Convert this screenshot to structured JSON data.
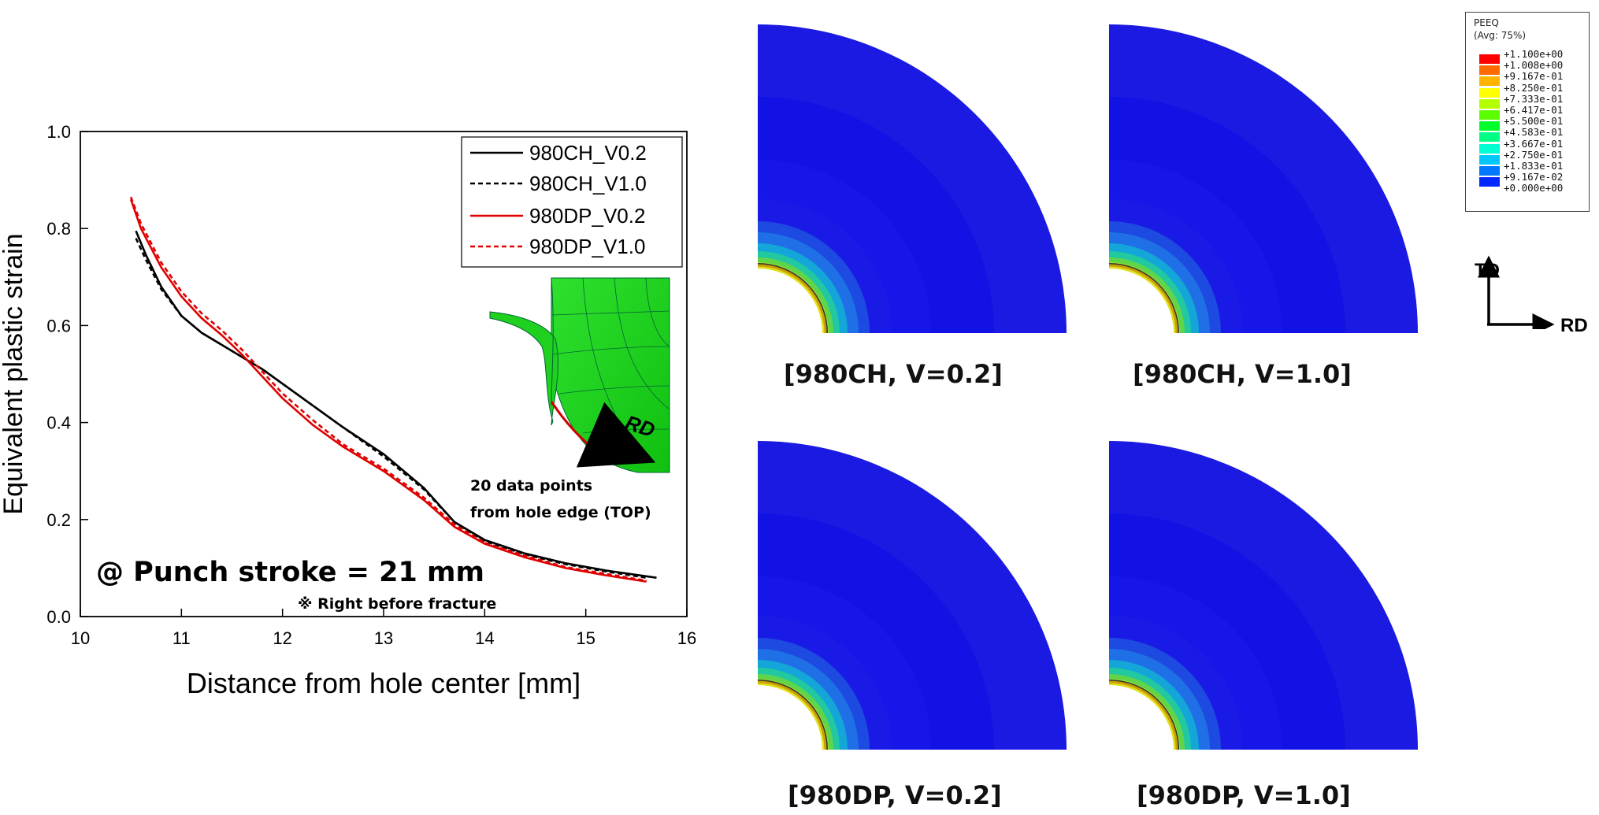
{
  "chart_data": {
    "type": "line",
    "xlabel": "Distance from hole center [mm]",
    "ylabel": "Equivalent plastic strain",
    "xlim": [
      10,
      16
    ],
    "ylim": [
      0.0,
      1.0
    ],
    "xticks": [
      "10",
      "11",
      "12",
      "13",
      "14",
      "15",
      "16"
    ],
    "yticks": [
      "0.0",
      "0.2",
      "0.4",
      "0.6",
      "0.8",
      "1.0"
    ],
    "legend_position": "top-right",
    "series": [
      {
        "name": "980CH_V0.2",
        "color": "#000000",
        "dash": "solid",
        "x": [
          10.55,
          10.65,
          10.8,
          11.0,
          11.2,
          11.4,
          11.6,
          11.8,
          12.0,
          12.3,
          12.6,
          13.0,
          13.4,
          13.7,
          14.0,
          14.4,
          14.8,
          15.2,
          15.7
        ],
        "y": [
          0.795,
          0.745,
          0.68,
          0.62,
          0.585,
          0.56,
          0.535,
          0.51,
          0.48,
          0.435,
          0.39,
          0.335,
          0.265,
          0.195,
          0.158,
          0.13,
          0.11,
          0.095,
          0.08
        ]
      },
      {
        "name": "980CH_V1.0",
        "color": "#000000",
        "dash": "dashed",
        "x": [
          10.55,
          10.65,
          10.8,
          11.0,
          11.2,
          11.4,
          11.6,
          11.8,
          12.0,
          12.3,
          12.6,
          13.0,
          13.4,
          13.7,
          14.0,
          14.4,
          14.8,
          15.2,
          15.6
        ],
        "y": [
          0.78,
          0.735,
          0.675,
          0.62,
          0.585,
          0.56,
          0.535,
          0.51,
          0.48,
          0.435,
          0.39,
          0.33,
          0.262,
          0.195,
          0.155,
          0.128,
          0.108,
          0.093,
          0.08
        ]
      },
      {
        "name": "980DP_V0.2",
        "color": "#e00000",
        "dash": "solid",
        "x": [
          10.5,
          10.6,
          10.8,
          11.0,
          11.2,
          11.4,
          11.6,
          11.8,
          12.0,
          12.3,
          12.6,
          13.0,
          13.4,
          13.7,
          14.0,
          14.4,
          14.8,
          15.2,
          15.6
        ],
        "y": [
          0.86,
          0.8,
          0.72,
          0.66,
          0.615,
          0.58,
          0.54,
          0.495,
          0.45,
          0.395,
          0.35,
          0.3,
          0.24,
          0.185,
          0.15,
          0.122,
          0.1,
          0.085,
          0.072
        ]
      },
      {
        "name": "980DP_V1.0",
        "color": "#e00000",
        "dash": "dashed",
        "x": [
          10.5,
          10.6,
          10.8,
          11.0,
          11.2,
          11.4,
          11.6,
          11.8,
          12.0,
          12.3,
          12.6,
          13.0,
          13.4,
          13.7,
          14.0,
          14.4,
          14.8,
          15.2,
          15.6
        ],
        "y": [
          0.865,
          0.81,
          0.73,
          0.67,
          0.625,
          0.59,
          0.55,
          0.505,
          0.46,
          0.405,
          0.355,
          0.305,
          0.245,
          0.19,
          0.152,
          0.125,
          0.102,
          0.088,
          0.074
        ]
      }
    ]
  },
  "annotations": {
    "stroke_text": "@ Punch stroke = 21 mm",
    "note_text": "※ Right before fracture",
    "inset_line1": "20 data points",
    "inset_line2": "from hole edge (TOP)",
    "inset_arrow_label": "RD"
  },
  "contour_labels": [
    "[980CH, V=0.2]",
    "[980CH, V=1.0]",
    "[980DP, V=0.2]",
    "[980DP, V=1.0]"
  ],
  "contour_legend": {
    "title_line1": "PEEQ",
    "title_line2": "(Avg: 75%)",
    "values": [
      "+1.100e+00",
      "+1.008e+00",
      "+9.167e-01",
      "+8.250e-01",
      "+7.333e-01",
      "+6.417e-01",
      "+5.500e-01",
      "+4.583e-01",
      "+3.667e-01",
      "+2.750e-01",
      "+1.833e-01",
      "+9.167e-02",
      "+0.000e+00"
    ],
    "colors": [
      "#ff0000",
      "#ff6a00",
      "#ffb400",
      "#ffff00",
      "#b4ff00",
      "#5cff00",
      "#00ff2a",
      "#00ff86",
      "#00ffd2",
      "#00c8ff",
      "#0078ff",
      "#0028ff",
      "#0000ff"
    ]
  },
  "axes_indicator": {
    "vertical": "TD",
    "horizontal": "RD"
  }
}
